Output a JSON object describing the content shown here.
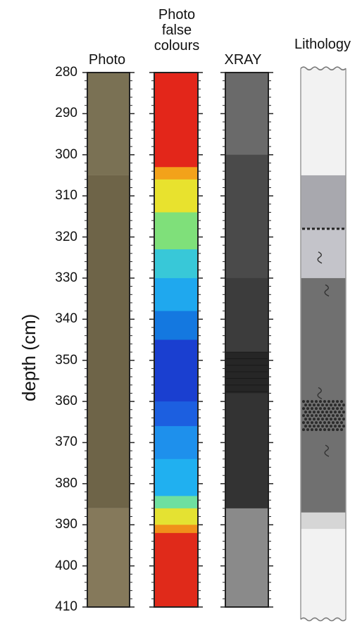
{
  "headers": {
    "photo": "Photo",
    "false_colours": [
      "Photo",
      "false",
      "colours"
    ],
    "xray": "XRAY",
    "lithology": "Lithology"
  },
  "axis": {
    "label": "depth (cm)",
    "min": 280,
    "max": 410,
    "major_ticks": [
      "280",
      "290",
      "300",
      "310",
      "320",
      "330",
      "340",
      "350",
      "360",
      "370",
      "380",
      "390",
      "400",
      "410"
    ]
  },
  "photo_colors": {
    "upper": "#7a7154",
    "lower": "#6e6448",
    "base": "#85795b"
  },
  "false_colour_bands": [
    {
      "from": 280,
      "to": 303,
      "color": "#e3261a"
    },
    {
      "from": 303,
      "to": 306,
      "color": "#f3a21a"
    },
    {
      "from": 306,
      "to": 314,
      "color": "#e8e22e"
    },
    {
      "from": 314,
      "to": 323,
      "color": "#7fe07a"
    },
    {
      "from": 323,
      "to": 330,
      "color": "#38c8d8"
    },
    {
      "from": 330,
      "to": 338,
      "color": "#1fa8ee"
    },
    {
      "from": 338,
      "to": 345,
      "color": "#1478e0"
    },
    {
      "from": 345,
      "to": 360,
      "color": "#1a3fd0"
    },
    {
      "from": 360,
      "to": 366,
      "color": "#1c5fe0"
    },
    {
      "from": 366,
      "to": 374,
      "color": "#1e90ec"
    },
    {
      "from": 374,
      "to": 383,
      "color": "#20b0f0"
    },
    {
      "from": 383,
      "to": 386,
      "color": "#6ee0a0"
    },
    {
      "from": 386,
      "to": 390,
      "color": "#e4e232"
    },
    {
      "from": 390,
      "to": 392,
      "color": "#f0901a"
    },
    {
      "from": 392,
      "to": 410,
      "color": "#e02a1a"
    }
  ],
  "xray_bands": [
    {
      "from": 280,
      "to": 300,
      "color": "#6a6a6a"
    },
    {
      "from": 300,
      "to": 330,
      "color": "#4a4a4a"
    },
    {
      "from": 330,
      "to": 348,
      "color": "#3c3c3c"
    },
    {
      "from": 348,
      "to": 358,
      "color": "#262626"
    },
    {
      "from": 358,
      "to": 386,
      "color": "#333333"
    },
    {
      "from": 386,
      "to": 410,
      "color": "#8a8a8a"
    }
  ],
  "lithology_units": [
    {
      "from": 279,
      "to": 305,
      "color": "#f2f2f2"
    },
    {
      "from": 305,
      "to": 318,
      "color": "#a8a8ae"
    },
    {
      "from": 318,
      "to": 330,
      "color": "#c4c4ca"
    },
    {
      "from": 330,
      "to": 387,
      "color": "#707070"
    },
    {
      "from": 387,
      "to": 391,
      "color": "#d6d6d6"
    },
    {
      "from": 391,
      "to": 413,
      "color": "#f2f2f2"
    }
  ],
  "lithology_features": {
    "dashed_line_depth": 318,
    "bioturbation_depths": [
      325,
      333,
      358,
      372
    ],
    "clast_patch": {
      "from": 360,
      "to": 367
    }
  }
}
